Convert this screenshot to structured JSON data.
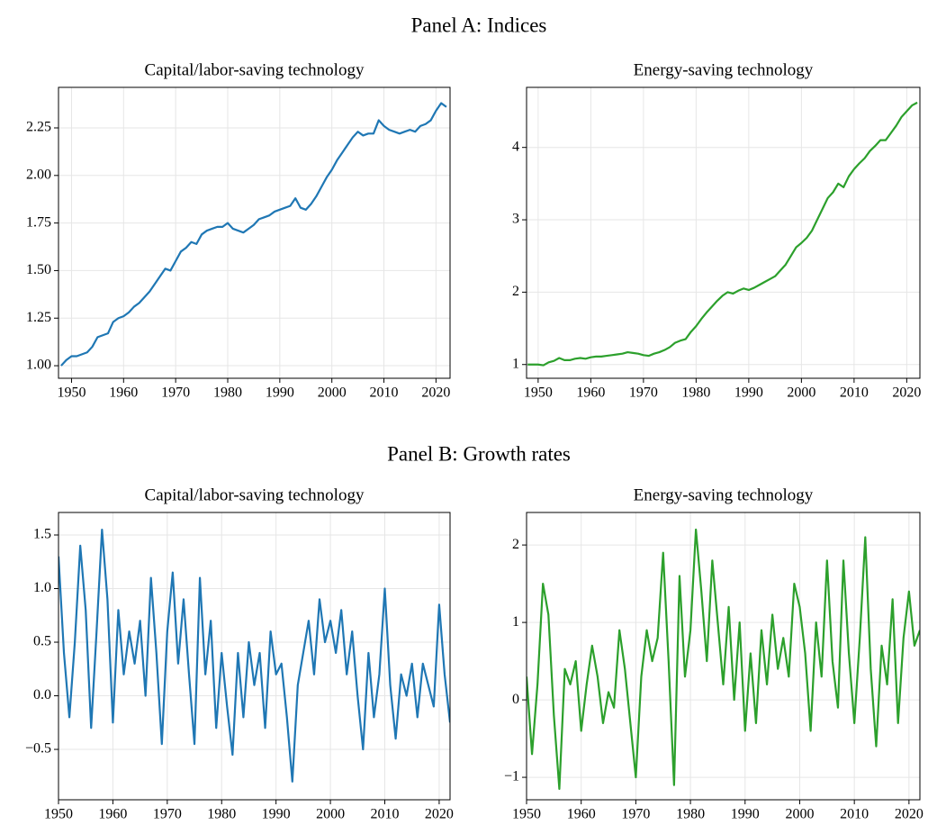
{
  "panels": [
    {
      "title": "Panel A: Indices"
    },
    {
      "title": "Panel B: Growth rates"
    }
  ],
  "chart_data": [
    {
      "type": "line",
      "title": "Capital/labor-saving technology",
      "color": "#1f77b4",
      "grid": true,
      "x": [
        1948,
        1949,
        1950,
        1951,
        1952,
        1953,
        1954,
        1955,
        1956,
        1957,
        1958,
        1959,
        1960,
        1961,
        1962,
        1963,
        1964,
        1965,
        1966,
        1967,
        1968,
        1969,
        1970,
        1971,
        1972,
        1973,
        1974,
        1975,
        1976,
        1977,
        1978,
        1979,
        1980,
        1981,
        1982,
        1983,
        1984,
        1985,
        1986,
        1987,
        1988,
        1989,
        1990,
        1991,
        1992,
        1993,
        1994,
        1995,
        1996,
        1997,
        1998,
        1999,
        2000,
        2001,
        2002,
        2003,
        2004,
        2005,
        2006,
        2007,
        2008,
        2009,
        2010,
        2011,
        2012,
        2013,
        2014,
        2015,
        2016,
        2017,
        2018,
        2019,
        2020,
        2021,
        2022
      ],
      "values": [
        1.0,
        1.03,
        1.05,
        1.05,
        1.06,
        1.07,
        1.1,
        1.15,
        1.16,
        1.17,
        1.23,
        1.25,
        1.26,
        1.28,
        1.31,
        1.33,
        1.36,
        1.39,
        1.43,
        1.47,
        1.51,
        1.5,
        1.55,
        1.6,
        1.62,
        1.65,
        1.64,
        1.69,
        1.71,
        1.72,
        1.73,
        1.73,
        1.75,
        1.72,
        1.71,
        1.7,
        1.72,
        1.74,
        1.77,
        1.78,
        1.79,
        1.81,
        1.82,
        1.83,
        1.84,
        1.88,
        1.83,
        1.82,
        1.85,
        1.89,
        1.94,
        1.99,
        2.03,
        2.08,
        2.12,
        2.16,
        2.2,
        2.23,
        2.21,
        2.22,
        2.22,
        2.29,
        2.26,
        2.24,
        2.23,
        2.22,
        2.23,
        2.24,
        2.23,
        2.26,
        2.27,
        2.29,
        2.34,
        2.38,
        2.36
      ],
      "xlim": [
        1947.5,
        2022.7
      ],
      "ylim": [
        0.934,
        2.463
      ],
      "xticks": [
        1950,
        1960,
        1970,
        1980,
        1990,
        2000,
        2010,
        2020
      ],
      "yticks": [
        {
          "value": 1,
          "label": "1.00"
        },
        1.25,
        {
          "value": 1.5,
          "label": "1.50"
        },
        1.75,
        {
          "value": 2,
          "label": "2.00"
        },
        2.25
      ]
    },
    {
      "type": "line",
      "title": "Energy-saving technology",
      "color": "#2ca02c",
      "grid": true,
      "x": [
        1948,
        1949,
        1950,
        1951,
        1952,
        1953,
        1954,
        1955,
        1956,
        1957,
        1958,
        1959,
        1960,
        1961,
        1962,
        1963,
        1964,
        1965,
        1966,
        1967,
        1968,
        1969,
        1970,
        1971,
        1972,
        1973,
        1974,
        1975,
        1976,
        1977,
        1978,
        1979,
        1980,
        1981,
        1982,
        1983,
        1984,
        1985,
        1986,
        1987,
        1988,
        1989,
        1990,
        1991,
        1992,
        1993,
        1994,
        1995,
        1996,
        1997,
        1998,
        1999,
        2000,
        2001,
        2002,
        2003,
        2004,
        2005,
        2006,
        2007,
        2008,
        2009,
        2010,
        2011,
        2012,
        2013,
        2014,
        2015,
        2016,
        2017,
        2018,
        2019,
        2020,
        2021,
        2022
      ],
      "values": [
        1.0,
        1.0,
        1.0,
        0.99,
        1.03,
        1.05,
        1.09,
        1.06,
        1.06,
        1.08,
        1.09,
        1.08,
        1.1,
        1.11,
        1.11,
        1.12,
        1.13,
        1.14,
        1.15,
        1.17,
        1.16,
        1.15,
        1.13,
        1.12,
        1.15,
        1.17,
        1.2,
        1.24,
        1.3,
        1.33,
        1.35,
        1.45,
        1.53,
        1.63,
        1.72,
        1.8,
        1.88,
        1.95,
        2.0,
        1.98,
        2.02,
        2.05,
        2.03,
        2.06,
        2.1,
        2.14,
        2.18,
        2.22,
        2.3,
        2.38,
        2.5,
        2.62,
        2.68,
        2.75,
        2.85,
        3.0,
        3.15,
        3.3,
        3.38,
        3.5,
        3.45,
        3.6,
        3.7,
        3.78,
        3.85,
        3.95,
        4.02,
        4.1,
        4.1,
        4.2,
        4.3,
        4.42,
        4.5,
        4.58,
        4.62
      ],
      "xlim": [
        1947.8,
        2022.5
      ],
      "ylim": [
        0.81,
        4.83
      ],
      "xticks": [
        1950,
        1960,
        1970,
        1980,
        1990,
        2000,
        2010,
        2020
      ],
      "yticks": [
        1,
        2,
        3,
        4
      ]
    },
    {
      "type": "line",
      "title": "Capital/labor-saving technology",
      "color": "#1f77b4",
      "grid": true,
      "x": [
        1950,
        1951,
        1952,
        1953,
        1954,
        1955,
        1956,
        1957,
        1958,
        1959,
        1960,
        1961,
        1962,
        1963,
        1964,
        1965,
        1966,
        1967,
        1968,
        1969,
        1970,
        1971,
        1972,
        1973,
        1974,
        1975,
        1976,
        1977,
        1978,
        1979,
        1980,
        1981,
        1982,
        1983,
        1984,
        1985,
        1986,
        1987,
        1988,
        1989,
        1990,
        1991,
        1992,
        1993,
        1994,
        1995,
        1996,
        1997,
        1998,
        1999,
        2000,
        2001,
        2002,
        2003,
        2004,
        2005,
        2006,
        2007,
        2008,
        2009,
        2010,
        2011,
        2012,
        2013,
        2014,
        2015,
        2016,
        2017,
        2018,
        2019,
        2020,
        2021,
        2022
      ],
      "values": [
        1.3,
        0.4,
        -0.2,
        0.5,
        1.4,
        0.8,
        -0.3,
        0.6,
        1.55,
        0.9,
        -0.25,
        0.8,
        0.2,
        0.6,
        0.3,
        0.7,
        0.0,
        1.1,
        0.4,
        -0.45,
        0.6,
        1.15,
        0.3,
        0.9,
        0.2,
        -0.45,
        1.1,
        0.2,
        0.7,
        -0.3,
        0.4,
        -0.1,
        -0.55,
        0.4,
        -0.2,
        0.5,
        0.1,
        0.4,
        -0.3,
        0.6,
        0.2,
        0.3,
        -0.2,
        -0.8,
        0.1,
        0.4,
        0.7,
        0.2,
        0.9,
        0.5,
        0.7,
        0.4,
        0.8,
        0.2,
        0.6,
        0.0,
        -0.5,
        0.4,
        -0.2,
        0.2,
        1.0,
        0.1,
        -0.4,
        0.2,
        0.0,
        0.3,
        -0.2,
        0.3,
        0.1,
        -0.1,
        0.85,
        0.2,
        -0.25
      ],
      "xlim": [
        1950,
        2022
      ],
      "ylim": [
        -0.97,
        1.71
      ],
      "xticks": [
        1950,
        1960,
        1970,
        1980,
        1990,
        2000,
        2010,
        2020
      ],
      "yticks": [
        {
          "value": -0.5,
          "label": "−0.5"
        },
        {
          "value": 0,
          "label": "0.0"
        },
        0.5,
        {
          "value": 1,
          "label": "1.0"
        },
        1.5
      ]
    },
    {
      "type": "line",
      "title": "Energy-saving technology",
      "color": "#2ca02c",
      "grid": true,
      "x": [
        1950,
        1951,
        1952,
        1953,
        1954,
        1955,
        1956,
        1957,
        1958,
        1959,
        1960,
        1961,
        1962,
        1963,
        1964,
        1965,
        1966,
        1967,
        1968,
        1969,
        1970,
        1971,
        1972,
        1973,
        1974,
        1975,
        1976,
        1977,
        1978,
        1979,
        1980,
        1981,
        1982,
        1983,
        1984,
        1985,
        1986,
        1987,
        1988,
        1989,
        1990,
        1991,
        1992,
        1993,
        1994,
        1995,
        1996,
        1997,
        1998,
        1999,
        2000,
        2001,
        2002,
        2003,
        2004,
        2005,
        2006,
        2007,
        2008,
        2009,
        2010,
        2011,
        2012,
        2013,
        2014,
        2015,
        2016,
        2017,
        2018,
        2019,
        2020,
        2021,
        2022
      ],
      "values": [
        0.3,
        -0.7,
        0.2,
        1.5,
        1.1,
        -0.2,
        -1.15,
        0.4,
        0.2,
        0.5,
        -0.4,
        0.2,
        0.7,
        0.3,
        -0.3,
        0.1,
        -0.1,
        0.9,
        0.4,
        -0.3,
        -1.0,
        0.3,
        0.9,
        0.5,
        0.8,
        1.9,
        0.5,
        -1.1,
        1.6,
        0.3,
        0.9,
        2.2,
        1.4,
        0.5,
        1.8,
        1.0,
        0.2,
        1.2,
        0.0,
        1.0,
        -0.4,
        0.6,
        -0.3,
        0.9,
        0.2,
        1.1,
        0.4,
        0.8,
        0.3,
        1.5,
        1.2,
        0.6,
        -0.4,
        1.0,
        0.3,
        1.8,
        0.5,
        -0.1,
        1.8,
        0.6,
        -0.3,
        0.8,
        2.1,
        0.4,
        -0.6,
        0.7,
        0.2,
        1.3,
        -0.3,
        0.8,
        1.4,
        0.7,
        0.9
      ],
      "xlim": [
        1950,
        2022
      ],
      "ylim": [
        -1.29,
        2.42
      ],
      "xticks": [
        1950,
        1960,
        1970,
        1980,
        1990,
        2000,
        2010,
        2020
      ],
      "yticks": [
        {
          "value": -1,
          "label": "−1"
        },
        0,
        1,
        2
      ]
    }
  ]
}
